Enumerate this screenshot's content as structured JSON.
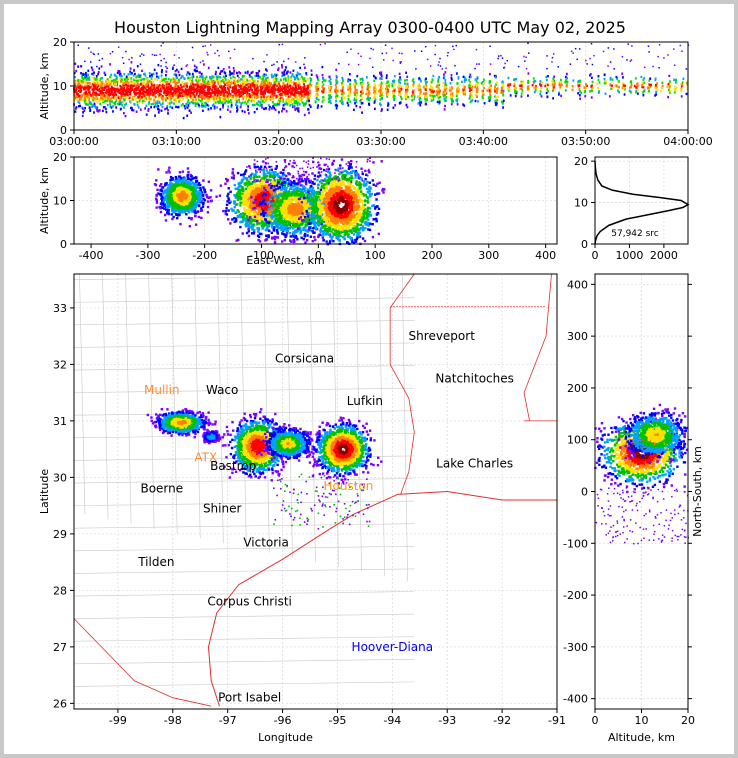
{
  "title": "Houston Lightning Mapping Array 0300-0400 UTC May 02, 2025",
  "chart_data": [
    {
      "id": "time_height",
      "type": "scatter",
      "xlabel": "",
      "ylabel": "Altitude, km",
      "xticks": [
        "03:00:00",
        "03:10:00",
        "03:20:00",
        "03:30:00",
        "03:40:00",
        "03:50:00",
        "04:00:00"
      ],
      "xlim_minutes": [
        0,
        60
      ],
      "ylim": [
        0,
        20
      ],
      "yticks": [
        0,
        10,
        20
      ],
      "grid": true,
      "point_color_scale": [
        "#7a00ff",
        "#0000ff",
        "#00a0ff",
        "#00e000",
        "#ffe000",
        "#ff8000",
        "#ff0000"
      ],
      "density_bands": [
        {
          "t_start_min": 0,
          "t_end_min": 23,
          "alt_center": 9,
          "alt_spread": 3.5,
          "intensity": "high"
        },
        {
          "t_start_min": 23,
          "t_end_min": 42,
          "alt_center": 9,
          "alt_spread": 3.0,
          "intensity": "medium"
        },
        {
          "t_start_min": 42,
          "t_end_min": 60,
          "alt_center": 10,
          "alt_spread": 2.0,
          "intensity": "low"
        }
      ]
    },
    {
      "id": "ew_alt",
      "type": "heatmap",
      "xlabel": "East-West, km",
      "ylabel": "Altitude, km",
      "xlim": [
        -430,
        420
      ],
      "xticks": [
        -400,
        -300,
        -200,
        -100,
        0,
        100,
        200,
        300,
        400
      ],
      "ylim": [
        0,
        20
      ],
      "yticks": [
        0,
        10,
        20
      ],
      "grid": true,
      "clusters": [
        {
          "x": -240,
          "alt": 11,
          "sx": 18,
          "sa": 2.2,
          "peak": 0.7
        },
        {
          "x": -95,
          "alt": 10,
          "sx": 30,
          "sa": 3.5,
          "peak": 0.9
        },
        {
          "x": -40,
          "alt": 8,
          "sx": 28,
          "sa": 3.0,
          "peak": 0.7
        },
        {
          "x": 40,
          "alt": 9,
          "sx": 28,
          "sa": 4.0,
          "peak": 1.0
        }
      ]
    },
    {
      "id": "alt_hist",
      "type": "line",
      "xlabel": "",
      "ylabel": "",
      "xlim": [
        0,
        2700
      ],
      "xticks": [
        0,
        1000,
        2000
      ],
      "ylim": [
        0,
        21
      ],
      "yticks": [
        0,
        10,
        20
      ],
      "grid": true,
      "annotation": "57,942 src",
      "x": [
        0,
        20,
        60,
        150,
        400,
        900,
        1500,
        2100,
        2550,
        2700,
        2500,
        1900,
        1100,
        500,
        200,
        80,
        30,
        10,
        0
      ],
      "y": [
        0,
        1,
        2,
        3,
        4.5,
        6,
        7,
        8,
        8.8,
        9.5,
        10.5,
        11.2,
        12,
        13,
        14,
        15.5,
        17,
        18.5,
        20
      ]
    },
    {
      "id": "plan_view",
      "type": "scatter",
      "xlabel": "Longitude",
      "ylabel": "Latitude",
      "xlim": [
        -99.8,
        -91
      ],
      "xticks": [
        -99,
        -98,
        -97,
        -96,
        -95,
        -94,
        -93,
        -92,
        -91
      ],
      "ylim": [
        25.9,
        33.6
      ],
      "yticks": [
        26,
        27,
        28,
        29,
        30,
        31,
        32,
        33
      ],
      "grid": true,
      "cities": [
        {
          "name": "Shreveport",
          "lon": -93.1,
          "lat": 32.5,
          "color": "#000000"
        },
        {
          "name": "Corsicana",
          "lon": -95.6,
          "lat": 32.1,
          "color": "#000000"
        },
        {
          "name": "Natchitoches",
          "lon": -92.5,
          "lat": 31.75,
          "color": "#000000"
        },
        {
          "name": "Mullin",
          "lon": -98.2,
          "lat": 31.55,
          "color": "#ff8c3c"
        },
        {
          "name": "Waco",
          "lon": -97.1,
          "lat": 31.55,
          "color": "#000000"
        },
        {
          "name": "Lufkin",
          "lon": -94.5,
          "lat": 31.35,
          "color": "#000000"
        },
        {
          "name": "ATX",
          "lon": -97.4,
          "lat": 30.35,
          "color": "#ff8c3c"
        },
        {
          "name": "Bastrop",
          "lon": -96.9,
          "lat": 30.2,
          "color": "#000000"
        },
        {
          "name": "Lake Charles",
          "lon": -92.5,
          "lat": 30.25,
          "color": "#000000"
        },
        {
          "name": "Houston",
          "lon": -94.8,
          "lat": 29.85,
          "color": "#ff9900"
        },
        {
          "name": "Boerne",
          "lon": -98.2,
          "lat": 29.8,
          "color": "#000000"
        },
        {
          "name": "Shiner",
          "lon": -97.1,
          "lat": 29.45,
          "color": "#000000"
        },
        {
          "name": "Victoria",
          "lon": -96.3,
          "lat": 28.85,
          "color": "#000000"
        },
        {
          "name": "Tilden",
          "lon": -98.3,
          "lat": 28.5,
          "color": "#000000"
        },
        {
          "name": "Corpus Christi",
          "lon": -96.6,
          "lat": 27.8,
          "color": "#000000"
        },
        {
          "name": "Hoover-Diana",
          "lon": -94.0,
          "lat": 27.0,
          "color": "#0000ff"
        },
        {
          "name": "Port Isabel",
          "lon": -96.6,
          "lat": 26.1,
          "color": "#000000"
        }
      ],
      "clusters": [
        {
          "lon": -97.85,
          "lat": 30.97,
          "slon": 0.2,
          "slat": 0.09,
          "peak": 0.7
        },
        {
          "lon": -97.3,
          "lat": 30.72,
          "slon": 0.06,
          "slat": 0.04,
          "peak": 0.35
        },
        {
          "lon": -96.45,
          "lat": 30.55,
          "slon": 0.22,
          "slat": 0.22,
          "peak": 0.9
        },
        {
          "lon": -95.9,
          "lat": 30.6,
          "slon": 0.18,
          "slat": 0.12,
          "peak": 0.6
        },
        {
          "lon": -94.9,
          "lat": 30.5,
          "slon": 0.22,
          "slat": 0.2,
          "peak": 1.0
        }
      ]
    },
    {
      "id": "ns_alt",
      "type": "heatmap",
      "xlabel": "Altitude, km",
      "ylabel": "North-South, km",
      "xlim": [
        0,
        20
      ],
      "xticks": [
        0,
        10,
        20
      ],
      "ylim": [
        -420,
        420
      ],
      "yticks": [
        -400,
        -300,
        -200,
        -100,
        0,
        100,
        200,
        300,
        400
      ],
      "grid": true,
      "clusters": [
        {
          "alt": 10,
          "y": 75,
          "sa": 4.0,
          "sy": 28,
          "peak": 1.0
        },
        {
          "alt": 13,
          "y": 110,
          "sa": 3.0,
          "sy": 20,
          "peak": 0.6
        }
      ]
    }
  ]
}
